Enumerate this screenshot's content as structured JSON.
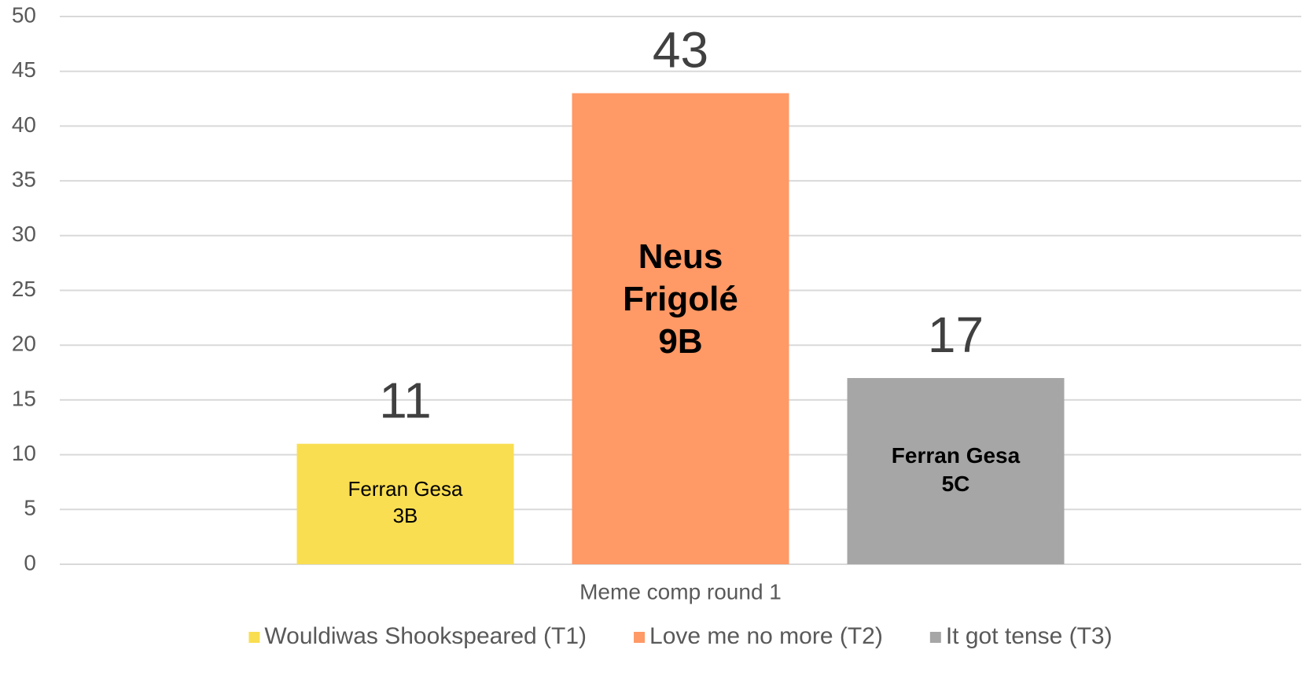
{
  "chart_data": {
    "type": "bar",
    "categories": [
      "Meme comp round 1"
    ],
    "series": [
      {
        "name": "Wouldiwas Shookspeared (T1)",
        "color": "#f9de52",
        "values": [
          11
        ],
        "annotation": [
          "Ferran Gesa",
          "3B"
        ]
      },
      {
        "name": "Love me no more (T2)",
        "color": "#ff9966",
        "values": [
          43
        ],
        "annotation": [
          "Neus",
          "Frigolé",
          "9B"
        ]
      },
      {
        "name": "It got tense (T3)",
        "color": "#a6a6a6",
        "values": [
          17
        ],
        "annotation": [
          "Ferran Gesa",
          "5C"
        ]
      }
    ],
    "ylim": [
      0,
      50
    ],
    "yticks": [
      0,
      5,
      10,
      15,
      20,
      25,
      30,
      35,
      40,
      45,
      50
    ],
    "grid": true,
    "legend": "bottom"
  }
}
